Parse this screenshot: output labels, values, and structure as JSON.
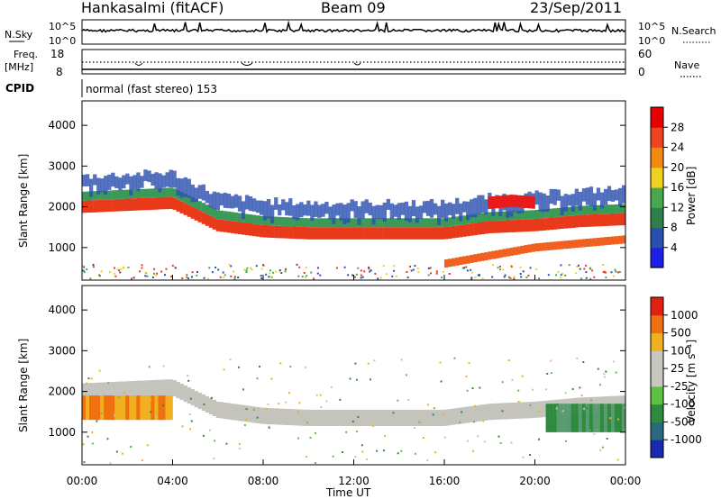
{
  "header": {
    "station": "Hankasalmi (fitACF)",
    "beam": "Beam 09",
    "date": "23/Sep/2011"
  },
  "panels": {
    "nsky_label": "N.Sky",
    "nsearch_label": "N.Search",
    "nsky_ticks": [
      "10^5",
      "10^0"
    ],
    "nsearch_ticks": [
      "10^5",
      "10^0"
    ],
    "freq_label_1": "Freq.",
    "freq_label_2": "[MHz]",
    "freq_ticks": [
      "18",
      "8"
    ],
    "nave_label": "Nave",
    "nave_ticks": [
      "60",
      "0"
    ],
    "cpid_label": "CPID",
    "cpid_text": "normal (fast stereo) 153"
  },
  "chart_data": [
    {
      "type": "heatmap",
      "name": "power",
      "ylabel": "Slant Range [km]",
      "yticks": [
        "4000",
        "3000",
        "2000",
        "1000"
      ],
      "ylim": [
        200,
        4600
      ],
      "xlim": [
        0,
        24
      ],
      "colorbar_label": "Power [dB]",
      "colorbar_ticks": [
        "28",
        "24",
        "20",
        "16",
        "12",
        "8",
        "4"
      ],
      "colors": [
        "#1e1ee6",
        "#2a4fb0",
        "#2f7f4a",
        "#48a84e",
        "#f0d020",
        "#f08a10",
        "#ef4420",
        "#e60000"
      ],
      "bands": [
        {
          "hours": [
            0,
            24
          ],
          "center_km": [
            2000,
            2050,
            2100,
            1550,
            1400,
            1350,
            1350,
            1350,
            1350,
            1500,
            1550,
            1650,
            1700
          ],
          "width_km": 300,
          "color": "#e83a1a"
        },
        {
          "hours": [
            16,
            24
          ],
          "center_km": [
            600,
            800,
            1000,
            1100,
            1200
          ],
          "width_km": 200,
          "color": "#f06020"
        },
        {
          "hours": [
            18,
            20
          ],
          "center_km": [
            2100,
            2150,
            2100
          ],
          "width_km": 300,
          "color": "#e81a1a"
        }
      ]
    },
    {
      "type": "heatmap",
      "name": "velocity",
      "ylabel": "Slant Range [km]",
      "yticks": [
        "4000",
        "3000",
        "2000",
        "1000"
      ],
      "ylim": [
        200,
        4600
      ],
      "xlim": [
        0,
        24
      ],
      "colorbar_label": "Velocity [m s⁻¹]",
      "colorbar_ticks": [
        "1000",
        "500",
        "100",
        "25",
        "-25",
        "-100",
        "-500",
        "-1000"
      ],
      "colors": [
        "#1a2ab0",
        "#2a6a80",
        "#2e8a3e",
        "#5cc040",
        "#c8c8c0",
        "#c8c8c0",
        "#f0b020",
        "#f07010",
        "#e02010"
      ]
    }
  ],
  "xaxis": {
    "ticks": [
      "00:00",
      "04:00",
      "08:00",
      "12:00",
      "16:00",
      "20:00",
      "00:00"
    ],
    "label": "Time UT"
  }
}
